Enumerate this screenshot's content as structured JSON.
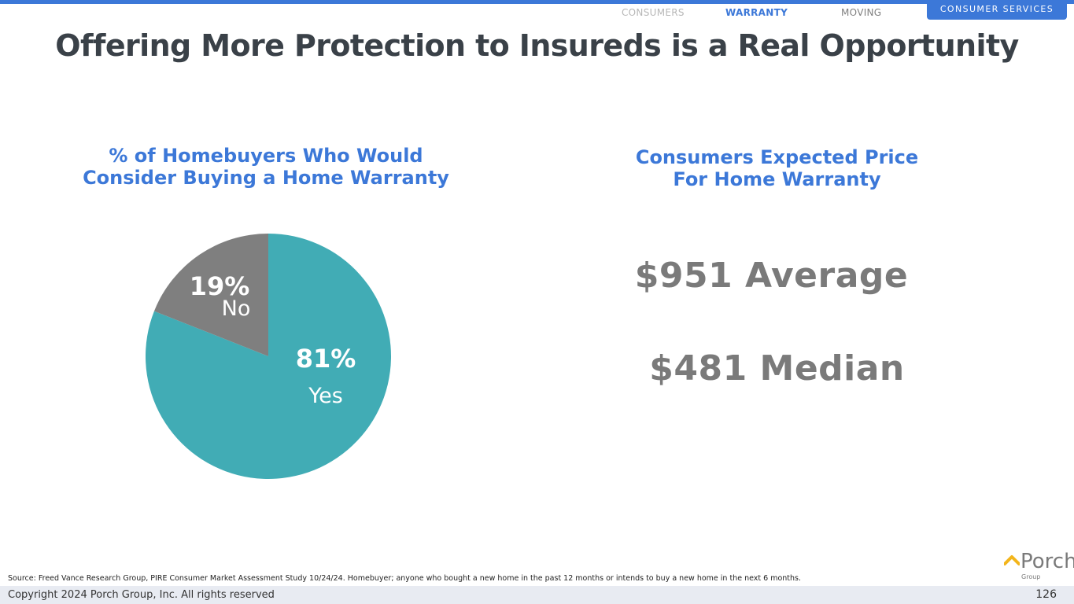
{
  "nav": {
    "tabs": [
      {
        "label": "CONSUMERS"
      },
      {
        "label": "WARRANTY"
      },
      {
        "label": "MOVING"
      }
    ],
    "section_tab": "CONSUMER SERVICES"
  },
  "title": "Offering More Protection to Insureds is a Real Opportunity",
  "left_panel": {
    "heading_line1": "% of Homebuyers Who Would",
    "heading_line2": "Consider Buying a Home Warranty"
  },
  "right_panel": {
    "heading_line1": "Consumers Expected Price",
    "heading_line2": "For Home Warranty",
    "average": "$951 Average",
    "median": "$481 Median"
  },
  "chart_data": {
    "type": "pie",
    "slices": [
      {
        "label": "Yes",
        "value": 81,
        "display": "81%",
        "color": "#41acb5"
      },
      {
        "label": "No",
        "value": 19,
        "display": "19%",
        "color": "#7f7f7f"
      }
    ],
    "start_angle": "12 o'clock",
    "direction": "clockwise",
    "legend": "none (labels inside slices)"
  },
  "colors": {
    "accent": "#3c78d8",
    "title": "#3a4148",
    "stat": "#7a7a7a",
    "logo_roof": "#f3b51b"
  },
  "footer": {
    "source": "Source: Freed Vance Research Group, PIRE Consumer Market Assessment Study 10/24/24. Homebuyer; anyone who bought a new home in the past 12 months or intends to buy a new home in the next 6 months.",
    "copyright": "Copyright 2024 Porch Group, Inc. All rights reserved",
    "page_number": "126"
  },
  "logo": {
    "word": "Porch",
    "sub": "Group",
    "icon": "roof-icon"
  }
}
